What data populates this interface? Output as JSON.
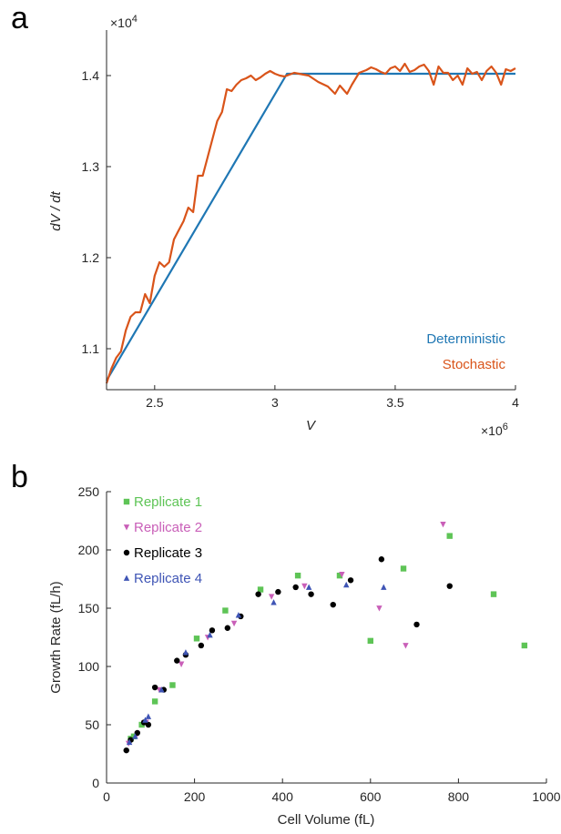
{
  "panel_labels": {
    "a": "a",
    "b": "b"
  },
  "colors": {
    "deterministic": "#1f77b4",
    "stochastic": "#d9541a",
    "replicate1": "#5ec456",
    "replicate2": "#c95fb8",
    "replicate3": "#000000",
    "replicate4": "#3f55b5",
    "axis": "#262626"
  },
  "chart_data": [
    {
      "type": "line",
      "xlabel": "V",
      "ylabel": "dV / dt",
      "x_multiplier_label": "×10",
      "x_multiplier_exp": "6",
      "y_multiplier_label": "×10",
      "y_multiplier_exp": "4",
      "xlim": [
        2.3,
        4.0
      ],
      "ylim": [
        1.055,
        1.45
      ],
      "xticks": [
        2.5,
        3,
        3.5,
        4
      ],
      "xtick_labels": [
        "2.5",
        "3",
        "3.5",
        "4"
      ],
      "yticks": [
        1.1,
        1.2,
        1.3,
        1.4
      ],
      "ytick_labels": [
        "1.1",
        "1.2",
        "1.3",
        "1.4"
      ],
      "legend_position": "bottom-right",
      "series": [
        {
          "name": "Deterministic",
          "x": [
            2.3,
            3.05,
            4.0
          ],
          "y": [
            1.065,
            1.402,
            1.402
          ]
        },
        {
          "name": "Stochastic",
          "x": [
            2.3,
            2.32,
            2.34,
            2.36,
            2.38,
            2.4,
            2.42,
            2.44,
            2.46,
            2.48,
            2.5,
            2.52,
            2.54,
            2.56,
            2.58,
            2.6,
            2.62,
            2.64,
            2.66,
            2.68,
            2.7,
            2.72,
            2.74,
            2.76,
            2.78,
            2.8,
            2.82,
            2.84,
            2.86,
            2.88,
            2.9,
            2.92,
            2.94,
            2.96,
            2.98,
            3.0,
            3.02,
            3.04,
            3.06,
            3.08,
            3.1,
            3.14,
            3.18,
            3.22,
            3.25,
            3.27,
            3.3,
            3.32,
            3.35,
            3.38,
            3.4,
            3.42,
            3.44,
            3.46,
            3.48,
            3.5,
            3.52,
            3.54,
            3.56,
            3.58,
            3.6,
            3.62,
            3.64,
            3.66,
            3.68,
            3.7,
            3.72,
            3.74,
            3.76,
            3.78,
            3.8,
            3.82,
            3.84,
            3.86,
            3.88,
            3.9,
            3.92,
            3.94,
            3.96,
            3.98,
            4.0
          ],
          "y": [
            1.062,
            1.078,
            1.09,
            1.097,
            1.12,
            1.135,
            1.14,
            1.14,
            1.16,
            1.15,
            1.18,
            1.195,
            1.19,
            1.195,
            1.22,
            1.23,
            1.24,
            1.255,
            1.25,
            1.29,
            1.29,
            1.31,
            1.33,
            1.35,
            1.36,
            1.385,
            1.383,
            1.39,
            1.395,
            1.397,
            1.4,
            1.395,
            1.398,
            1.402,
            1.405,
            1.402,
            1.4,
            1.399,
            1.401,
            1.403,
            1.402,
            1.4,
            1.393,
            1.388,
            1.38,
            1.389,
            1.38,
            1.39,
            1.403,
            1.406,
            1.409,
            1.407,
            1.404,
            1.402,
            1.408,
            1.41,
            1.405,
            1.413,
            1.404,
            1.406,
            1.41,
            1.412,
            1.405,
            1.39,
            1.41,
            1.403,
            1.403,
            1.395,
            1.4,
            1.39,
            1.408,
            1.402,
            1.404,
            1.395,
            1.405,
            1.41,
            1.403,
            1.39,
            1.407,
            1.405,
            1.408
          ]
        }
      ]
    },
    {
      "type": "scatter",
      "xlabel": "Cell Volume (fL)",
      "ylabel": "Growth Rate (fL/h)",
      "xlim": [
        0,
        1000
      ],
      "ylim": [
        0,
        250
      ],
      "xticks": [
        0,
        200,
        400,
        600,
        800,
        1000
      ],
      "xtick_labels": [
        "0",
        "200",
        "400",
        "600",
        "800",
        "1000"
      ],
      "yticks": [
        0,
        50,
        100,
        150,
        200,
        250
      ],
      "ytick_labels": [
        "0",
        "50",
        "100",
        "150",
        "200",
        "250"
      ],
      "legend_position": "top-left",
      "series": [
        {
          "name": "Replicate 1",
          "marker": "square",
          "points": [
            [
              55,
              38
            ],
            [
              62,
              40
            ],
            [
              80,
              50
            ],
            [
              110,
              70
            ],
            [
              150,
              84
            ],
            [
              205,
              124
            ],
            [
              270,
              148
            ],
            [
              350,
              166
            ],
            [
              435,
              178
            ],
            [
              530,
              178
            ],
            [
              600,
              122
            ],
            [
              675,
              184
            ],
            [
              780,
              212
            ],
            [
              880,
              162
            ],
            [
              950,
              118
            ]
          ]
        },
        {
          "name": "Replicate 2",
          "marker": "triangle-down",
          "points": [
            [
              50,
              34
            ],
            [
              70,
              42
            ],
            [
              90,
              52
            ],
            [
              120,
              80
            ],
            [
              170,
              102
            ],
            [
              230,
              125
            ],
            [
              290,
              137
            ],
            [
              375,
              160
            ],
            [
              450,
              169
            ],
            [
              535,
              179
            ],
            [
              620,
              150
            ],
            [
              680,
              118
            ],
            [
              765,
              222
            ]
          ]
        },
        {
          "name": "Replicate 3",
          "marker": "circle",
          "points": [
            [
              45,
              28
            ],
            [
              55,
              37
            ],
            [
              70,
              43
            ],
            [
              85,
              52
            ],
            [
              95,
              50
            ],
            [
              110,
              82
            ],
            [
              130,
              80
            ],
            [
              160,
              105
            ],
            [
              180,
              110
            ],
            [
              215,
              118
            ],
            [
              240,
              131
            ],
            [
              275,
              133
            ],
            [
              305,
              143
            ],
            [
              345,
              162
            ],
            [
              390,
              164
            ],
            [
              430,
              168
            ],
            [
              465,
              162
            ],
            [
              515,
              153
            ],
            [
              555,
              174
            ],
            [
              625,
              192
            ],
            [
              705,
              136
            ],
            [
              780,
              169
            ]
          ]
        },
        {
          "name": "Replicate 4",
          "marker": "triangle-up",
          "points": [
            [
              52,
              35
            ],
            [
              65,
              40
            ],
            [
              88,
              54
            ],
            [
              95,
              57
            ],
            [
              125,
              80
            ],
            [
              180,
              112
            ],
            [
              235,
              127
            ],
            [
              300,
              144
            ],
            [
              380,
              155
            ],
            [
              460,
              168
            ],
            [
              545,
              170
            ],
            [
              630,
              168
            ]
          ]
        }
      ]
    }
  ]
}
